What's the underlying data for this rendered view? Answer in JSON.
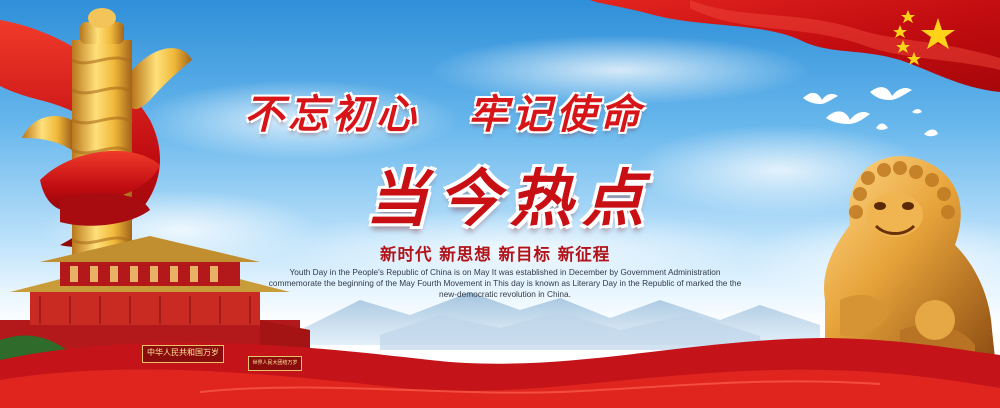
{
  "banner": {
    "slogan_left": "不忘初心",
    "slogan_right": "牢记使命",
    "headline": "当今热点",
    "tagline": "新时代 新思想 新目标 新征程",
    "paragraph": "Youth Day in the People's Republic of China is on May  It was established in December by Government Administration commemorate the beginning of the May Fourth Movement in This day is known as Literary Day in the Republic of  marked the the new-democratic revolution in China.",
    "gate_plaque": "中华人民共和国万岁",
    "gate_plaque_right": "世界人民大团结万岁"
  },
  "colors": {
    "accent_red": "#d71418",
    "sky_top": "#2f8fd8",
    "gold": "#e9b43a"
  }
}
